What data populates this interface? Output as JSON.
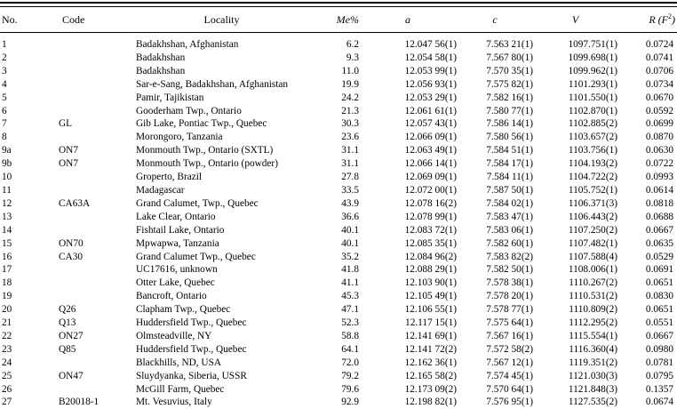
{
  "table": {
    "headers": {
      "no": "No.",
      "code": "Code",
      "locality": "Locality",
      "me": "Me%",
      "a": "a",
      "c": "c",
      "v": "V",
      "r_pre": "R (F",
      "r_sup": "2",
      "r_post": ")"
    },
    "rows": [
      {
        "no": "1",
        "code": "",
        "locality": "Badakhshan, Afghanistan",
        "me": "6.2",
        "a": "12.047 56(1)",
        "c": "7.563 21(1)",
        "v": "1097.751(1)",
        "r": "0.0724"
      },
      {
        "no": "2",
        "code": "",
        "locality": "Badakhshan",
        "me": "9.3",
        "a": "12.054 58(1)",
        "c": "7.567 80(1)",
        "v": "1099.698(1)",
        "r": "0.0741"
      },
      {
        "no": "3",
        "code": "",
        "locality": "Badakhshan",
        "me": "11.0",
        "a": "12.053 99(1)",
        "c": "7.570 35(1)",
        "v": "1099.962(1)",
        "r": "0.0706"
      },
      {
        "no": "4",
        "code": "",
        "locality": "Sar-e-Sang, Badakhshan, Afghanistan",
        "me": "19.9",
        "a": "12.056 93(1)",
        "c": "7.575 82(1)",
        "v": "1101.293(1)",
        "r": "0.0734"
      },
      {
        "no": "5",
        "code": "",
        "locality": "Pamir, Tajikistan",
        "me": "24.2",
        "a": "12.053 29(1)",
        "c": "7.582 16(1)",
        "v": "1101.550(1)",
        "r": "0.0670"
      },
      {
        "no": "6",
        "code": "",
        "locality": "Gooderham Twp., Ontario",
        "me": "21.3",
        "a": "12.061 61(1)",
        "c": "7.580 77(1)",
        "v": "1102.870(1)",
        "r": "0.0592"
      },
      {
        "no": "7",
        "code": "GL",
        "locality": "Gib Lake, Pontiac Twp., Quebec",
        "me": "30.3",
        "a": "12.057 43(1)",
        "c": "7.586 14(1)",
        "v": "1102.885(2)",
        "r": "0.0699"
      },
      {
        "no": "8",
        "code": "",
        "locality": "Morongoro, Tanzania",
        "me": "23.6",
        "a": "12.066 09(1)",
        "c": "7.580 56(1)",
        "v": "1103.657(2)",
        "r": "0.0870"
      },
      {
        "no": "9a",
        "code": "ON7",
        "locality": "Monmouth Twp., Ontario (SXTL)",
        "me": "31.1",
        "a": "12.063 49(1)",
        "c": "7.584 51(1)",
        "v": "1103.756(1)",
        "r": "0.0630"
      },
      {
        "no": "9b",
        "code": "ON7",
        "locality": "Monmouth Twp., Ontario (powder)",
        "me": "31.1",
        "a": "12.066 14(1)",
        "c": "7.584 17(1)",
        "v": "1104.193(2)",
        "r": "0.0722"
      },
      {
        "no": "10",
        "code": "",
        "locality": "Groperto, Brazil",
        "me": "27.8",
        "a": "12.069 09(1)",
        "c": "7.584 11(1)",
        "v": "1104.722(2)",
        "r": "0.0993"
      },
      {
        "no": "11",
        "code": "",
        "locality": "Madagascar",
        "me": "33.5",
        "a": "12.072 00(1)",
        "c": "7.587 50(1)",
        "v": "1105.752(1)",
        "r": "0.0614"
      },
      {
        "no": "12",
        "code": "CA63A",
        "locality": "Grand Calumet, Twp., Quebec",
        "me": "43.9",
        "a": "12.078 16(2)",
        "c": "7.584 02(1)",
        "v": "1106.371(3)",
        "r": "0.0818"
      },
      {
        "no": "13",
        "code": "",
        "locality": "Lake Clear, Ontario",
        "me": "36.6",
        "a": "12.078 99(1)",
        "c": "7.583 47(1)",
        "v": "1106.443(2)",
        "r": "0.0688"
      },
      {
        "no": "14",
        "code": "",
        "locality": "Fishtail Lake, Ontario",
        "me": "40.1",
        "a": "12.083 72(1)",
        "c": "7.583 06(1)",
        "v": "1107.250(2)",
        "r": "0.0667"
      },
      {
        "no": "15",
        "code": "ON70",
        "locality": "Mpwapwa, Tanzania",
        "me": "40.1",
        "a": "12.085 35(1)",
        "c": "7.582 60(1)",
        "v": "1107.482(1)",
        "r": "0.0635"
      },
      {
        "no": "16",
        "code": "CA30",
        "locality": "Grand Calumet Twp., Quebec",
        "me": "35.2",
        "a": "12.084 96(2)",
        "c": "7.583 82(2)",
        "v": "1107.588(4)",
        "r": "0.0529"
      },
      {
        "no": "17",
        "code": "",
        "locality": "UC17616, unknown",
        "me": "41.8",
        "a": "12.088 29(1)",
        "c": "7.582 50(1)",
        "v": "1108.006(1)",
        "r": "0.0691"
      },
      {
        "no": "18",
        "code": "",
        "locality": "Otter Lake, Quebec",
        "me": "41.1",
        "a": "12.103 90(1)",
        "c": "7.578 38(1)",
        "v": "1110.267(2)",
        "r": "0.0651"
      },
      {
        "no": "19",
        "code": "",
        "locality": "Bancroft, Ontario",
        "me": "45.3",
        "a": "12.105 49(1)",
        "c": "7.578 20(1)",
        "v": "1110.531(2)",
        "r": "0.0830"
      },
      {
        "no": "20",
        "code": "Q26",
        "locality": "Clapham Twp., Quebec",
        "me": "47.1",
        "a": "12.106 55(1)",
        "c": "7.578 77(1)",
        "v": "1110.809(2)",
        "r": "0.0651"
      },
      {
        "no": "21",
        "code": "Q13",
        "locality": "Huddersfield Twp., Quebec",
        "me": "52.3",
        "a": "12.117 15(1)",
        "c": "7.575 64(1)",
        "v": "1112.295(2)",
        "r": "0.0551"
      },
      {
        "no": "22",
        "code": "ON27",
        "locality": "Olmsteadville, NY",
        "me": "58.8",
        "a": "12.141 69(1)",
        "c": "7.567 16(1)",
        "v": "1115.554(1)",
        "r": "0.0667"
      },
      {
        "no": "23",
        "code": "Q85",
        "locality": "Huddersfield Twp., Quebec",
        "me": "64.1",
        "a": "12.141 72(2)",
        "c": "7.572 58(2)",
        "v": "1116.360(4)",
        "r": "0.0980"
      },
      {
        "no": "24",
        "code": "",
        "locality": "Blackhills, ND, USA",
        "me": "72.0",
        "a": "12.162 36(1)",
        "c": "7.567 12(1)",
        "v": "1119.351(2)",
        "r": "0.0781"
      },
      {
        "no": "25",
        "code": "ON47",
        "locality": "Sluydyanka, Siberia, USSR",
        "me": "79.2",
        "a": "12.165 58(2)",
        "c": "7.574 45(1)",
        "v": "1121.030(3)",
        "r": "0.0795"
      },
      {
        "no": "26",
        "code": "",
        "locality": "McGill Farm, Quebec",
        "me": "79.6",
        "a": "12.173 09(2)",
        "c": "7.570 64(1)",
        "v": "1121.848(3)",
        "r": "0.1357"
      },
      {
        "no": "27",
        "code": "B20018-1",
        "locality": "Mt. Vesuvius, Italy",
        "me": "92.9",
        "a": "12.198 82(1)",
        "c": "7.576 95(1)",
        "v": "1127.535(2)",
        "r": "0.0674"
      }
    ]
  }
}
